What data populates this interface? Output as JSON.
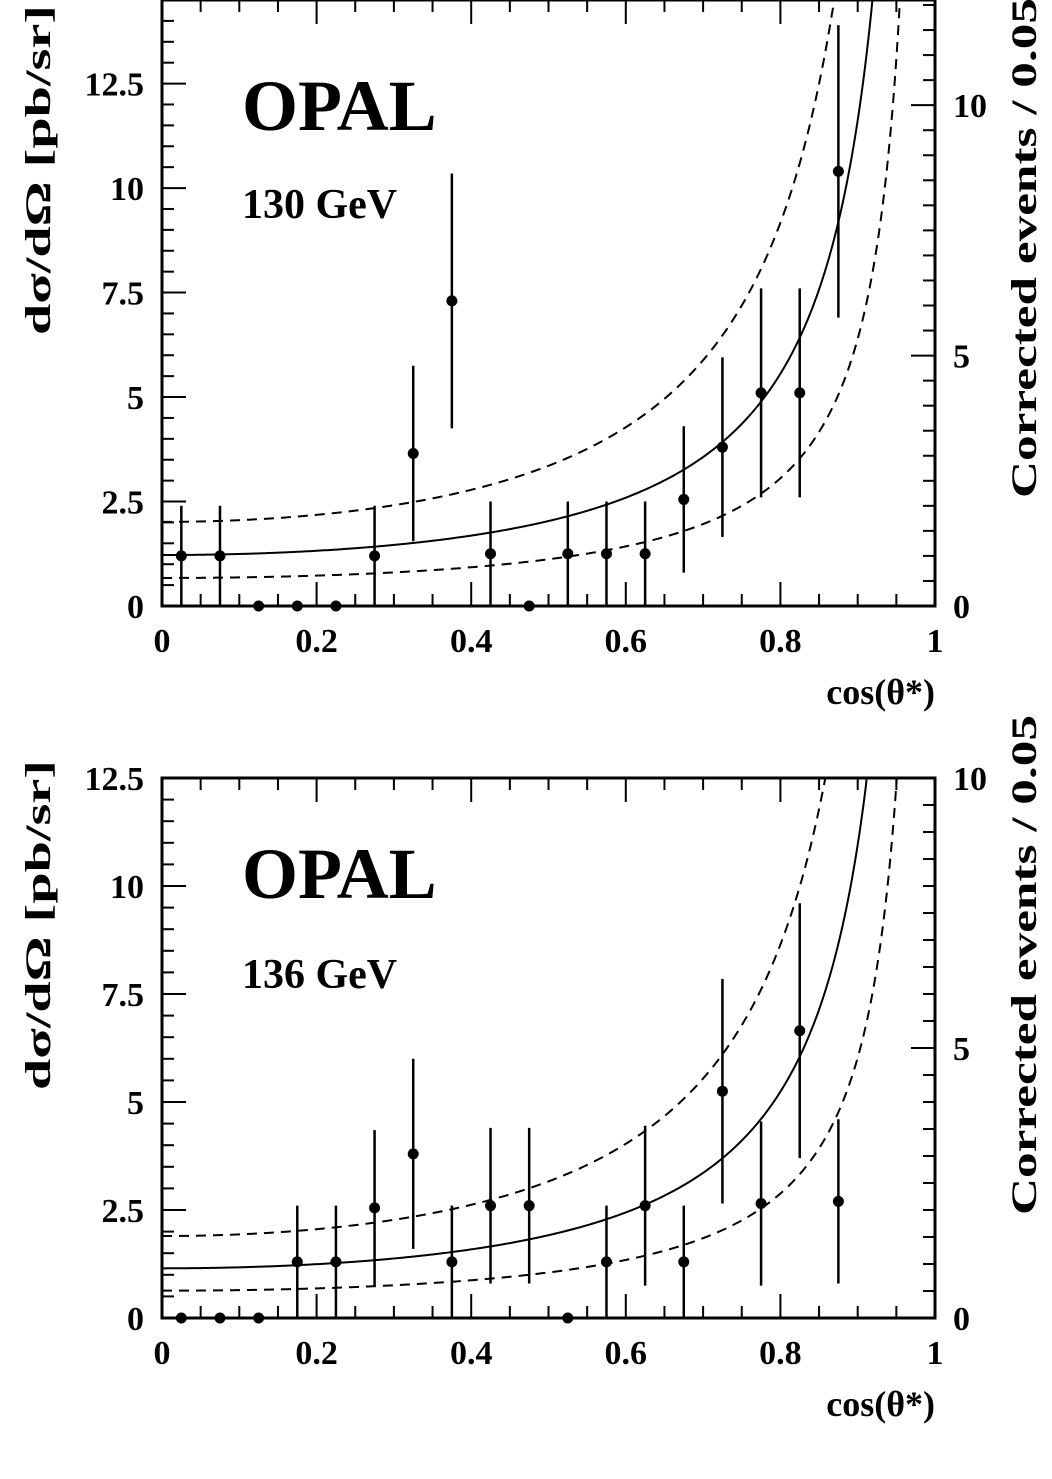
{
  "chart_data": [
    {
      "type": "scatter",
      "experiment_label": "OPAL",
      "energy_label": "130 GeV",
      "xlabel": "cos(θ*)",
      "ylabel": "dσ/dΩ [pb/sr]",
      "ylabel_right": "Corrected events / 0.05",
      "xlim": [
        0,
        1
      ],
      "ylim": [
        0,
        14.5
      ],
      "y_right_lim": [
        0,
        12.1
      ],
      "x_ticks": [
        "0",
        "0.2",
        "0.4",
        "0.6",
        "0.8",
        "1"
      ],
      "y_ticks": [
        "0",
        "2.5",
        "5",
        "7.5",
        "10",
        "12.5"
      ],
      "y_right_ticks": [
        "0",
        "5",
        "10"
      ],
      "points": [
        {
          "x": 0.025,
          "y": 1.2,
          "err": 1.2
        },
        {
          "x": 0.075,
          "y": 1.2,
          "err": 1.2
        },
        {
          "x": 0.125,
          "y": 0.0,
          "err": 0
        },
        {
          "x": 0.175,
          "y": 0.0,
          "err": 0
        },
        {
          "x": 0.225,
          "y": 0.0,
          "err": 0
        },
        {
          "x": 0.275,
          "y": 1.2,
          "err": 1.2
        },
        {
          "x": 0.325,
          "y": 3.65,
          "err": 2.1
        },
        {
          "x": 0.375,
          "y": 7.3,
          "err": 3.05
        },
        {
          "x": 0.425,
          "y": 1.25,
          "err": 1.25
        },
        {
          "x": 0.475,
          "y": 0.0,
          "err": 0
        },
        {
          "x": 0.525,
          "y": 1.25,
          "err": 1.25
        },
        {
          "x": 0.575,
          "y": 1.25,
          "err": 1.25
        },
        {
          "x": 0.625,
          "y": 1.25,
          "err": 1.25
        },
        {
          "x": 0.675,
          "y": 2.55,
          "err": 1.75
        },
        {
          "x": 0.725,
          "y": 3.8,
          "err": 2.15
        },
        {
          "x": 0.775,
          "y": 5.1,
          "err": 2.5
        },
        {
          "x": 0.825,
          "y": 5.1,
          "err": 2.5
        },
        {
          "x": 0.875,
          "y": 10.4,
          "err": 3.5
        }
      ],
      "curve_scale": 1.22
    },
    {
      "type": "scatter",
      "experiment_label": "OPAL",
      "energy_label": "136 GeV",
      "xlabel": "cos(θ*)",
      "ylabel": "dσ/dΩ [pb/sr]",
      "ylabel_right": "Corrected events / 0.05",
      "xlim": [
        0,
        1
      ],
      "ylim": [
        0,
        12.5
      ],
      "y_right_lim": [
        0,
        10
      ],
      "x_ticks": [
        "0",
        "0.2",
        "0.4",
        "0.6",
        "0.8",
        "1"
      ],
      "y_ticks": [
        "0",
        "2.5",
        "5",
        "7.5",
        "10",
        "12.5"
      ],
      "y_right_ticks": [
        "0",
        "5",
        "10"
      ],
      "points": [
        {
          "x": 0.025,
          "y": 0.0,
          "err": 0
        },
        {
          "x": 0.075,
          "y": 0.0,
          "err": 0
        },
        {
          "x": 0.125,
          "y": 0.0,
          "err": 0
        },
        {
          "x": 0.175,
          "y": 1.3,
          "err": 1.3
        },
        {
          "x": 0.225,
          "y": 1.3,
          "err": 1.3
        },
        {
          "x": 0.275,
          "y": 2.55,
          "err": 1.8
        },
        {
          "x": 0.325,
          "y": 3.8,
          "err": 2.2
        },
        {
          "x": 0.375,
          "y": 1.3,
          "err": 1.3
        },
        {
          "x": 0.425,
          "y": 2.6,
          "err": 1.8
        },
        {
          "x": 0.475,
          "y": 2.6,
          "err": 1.8
        },
        {
          "x": 0.525,
          "y": 0.0,
          "err": 0
        },
        {
          "x": 0.575,
          "y": 1.3,
          "err": 1.3
        },
        {
          "x": 0.625,
          "y": 2.6,
          "err": 1.85
        },
        {
          "x": 0.675,
          "y": 1.3,
          "err": 1.3
        },
        {
          "x": 0.725,
          "y": 5.25,
          "err": 2.6
        },
        {
          "x": 0.775,
          "y": 2.65,
          "err": 1.9
        },
        {
          "x": 0.825,
          "y": 6.65,
          "err": 2.95
        },
        {
          "x": 0.875,
          "y": 2.7,
          "err": 1.9
        }
      ],
      "curve_scale": 1.15
    }
  ]
}
